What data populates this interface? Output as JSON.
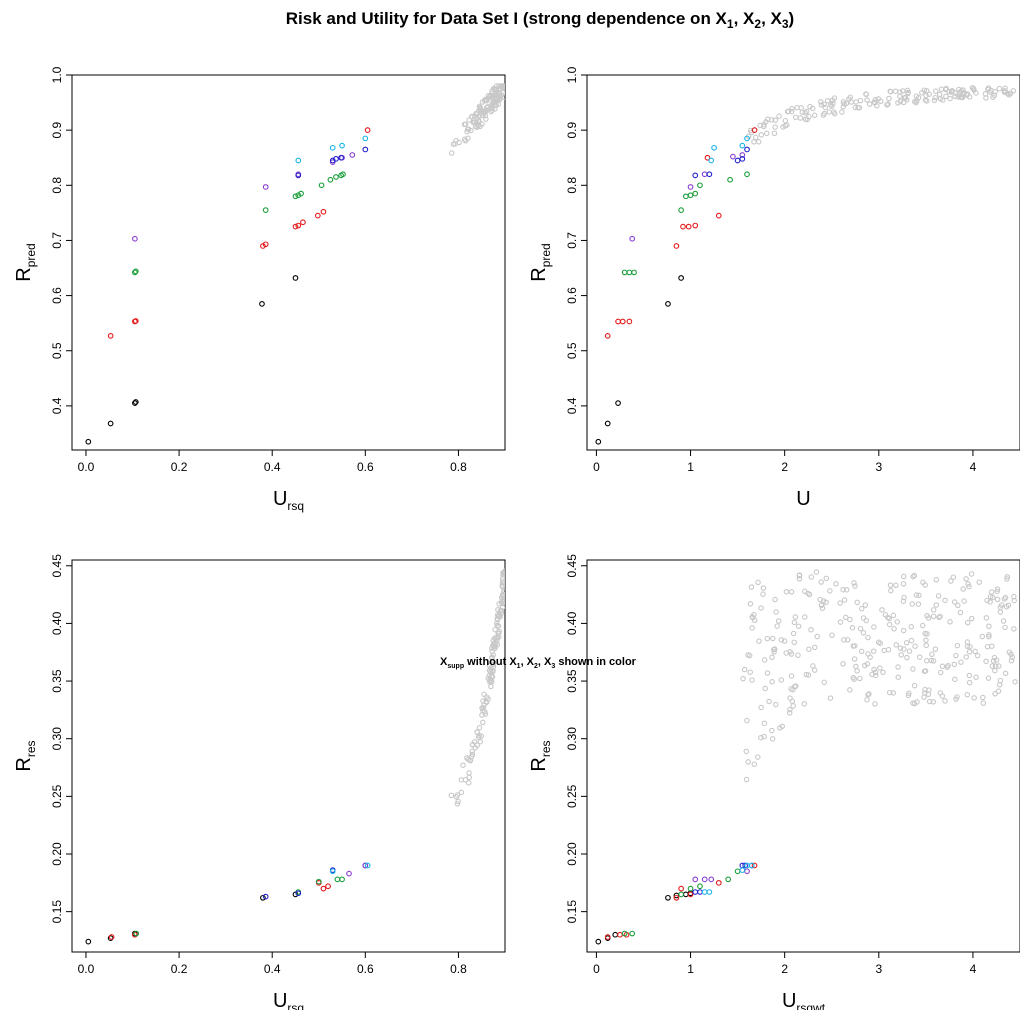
{
  "figure": {
    "title": "Risk and Utility for Data Set I (strong dependence on X1, X2, X3)",
    "title_parts": {
      "main": "Risk and Utility for Data Set I (strong dependence on X",
      "s1": "1",
      "c1": ", X",
      "s2": "2",
      "c2": ", X",
      "s3": "3",
      "end": ")"
    },
    "footnote": "Xsupp without X1, X2, X3 shown in color",
    "footnote_parts": {
      "x": "X",
      "supp": "supp",
      "mid": " without X",
      "s1": "1",
      "c1": ", X",
      "s2": "2",
      "c2": ", X",
      "s3": "3",
      "end": " shown in color"
    }
  },
  "colors": {
    "gray": "#c8c8c8",
    "black": "#000000",
    "red": "#e41a1c",
    "green": "#1a9e3a",
    "blue": "#2222cc",
    "purple": "#8a3fd0",
    "cyan": "#1ab4e8"
  },
  "chart_data": [
    {
      "type": "scatter",
      "xlabel": "U",
      "xlabel_sub": "rsq",
      "ylabel": "R",
      "ylabel_sub": "pred",
      "xlim": [
        -0.03,
        0.9
      ],
      "ylim": [
        0.32,
        1.0
      ],
      "x_ticks": [
        "0.0",
        "0.2",
        "0.4",
        "0.6",
        "0.8"
      ],
      "y_ticks": [
        "0.4",
        "0.5",
        "0.6",
        "0.7",
        "0.8",
        "0.9",
        "1.0"
      ],
      "grid": false,
      "legend": "none",
      "series": [
        {
          "color": "black",
          "points": [
            [
              0.005,
              0.335
            ],
            [
              0.053,
              0.368
            ],
            [
              0.105,
              0.405
            ],
            [
              0.107,
              0.407
            ],
            [
              0.378,
              0.585
            ],
            [
              0.45,
              0.632
            ]
          ]
        },
        {
          "color": "red",
          "points": [
            [
              0.053,
              0.527
            ],
            [
              0.105,
              0.553
            ],
            [
              0.107,
              0.554
            ],
            [
              0.38,
              0.69
            ],
            [
              0.386,
              0.693
            ],
            [
              0.45,
              0.725
            ],
            [
              0.456,
              0.727
            ],
            [
              0.466,
              0.733
            ],
            [
              0.498,
              0.745
            ],
            [
              0.51,
              0.752
            ],
            [
              0.605,
              0.9
            ]
          ]
        },
        {
          "color": "green",
          "points": [
            [
              0.105,
              0.642
            ],
            [
              0.107,
              0.644
            ],
            [
              0.386,
              0.755
            ],
            [
              0.45,
              0.78
            ],
            [
              0.456,
              0.782
            ],
            [
              0.462,
              0.785
            ],
            [
              0.506,
              0.8
            ],
            [
              0.525,
              0.81
            ],
            [
              0.537,
              0.815
            ],
            [
              0.548,
              0.818
            ],
            [
              0.552,
              0.82
            ]
          ]
        },
        {
          "color": "purple",
          "points": [
            [
              0.105,
              0.703
            ],
            [
              0.386,
              0.797
            ],
            [
              0.456,
              0.82
            ],
            [
              0.53,
              0.842
            ],
            [
              0.55,
              0.85
            ],
            [
              0.572,
              0.855
            ]
          ]
        },
        {
          "color": "blue",
          "points": [
            [
              0.456,
              0.818
            ],
            [
              0.53,
              0.845
            ],
            [
              0.537,
              0.848
            ],
            [
              0.548,
              0.85
            ],
            [
              0.6,
              0.865
            ]
          ]
        },
        {
          "color": "cyan",
          "points": [
            [
              0.456,
              0.845
            ],
            [
              0.53,
              0.868
            ],
            [
              0.55,
              0.872
            ],
            [
              0.6,
              0.885
            ]
          ]
        }
      ],
      "gray_cloud": {
        "n": 120,
        "x_range": [
          0.77,
          0.9
        ],
        "y_range": [
          0.85,
          0.98
        ],
        "shape": "rising"
      }
    },
    {
      "type": "scatter",
      "xlabel": "U",
      "xlabel_sub": "",
      "ylabel": "R",
      "ylabel_sub": "pred",
      "xlim": [
        -0.1,
        4.5
      ],
      "ylim": [
        0.32,
        1.0
      ],
      "x_ticks": [
        "0",
        "1",
        "2",
        "3",
        "4"
      ],
      "y_ticks": [
        "0.4",
        "0.5",
        "0.6",
        "0.7",
        "0.8",
        "0.9",
        "1.0"
      ],
      "grid": false,
      "legend": "none",
      "series": [
        {
          "color": "black",
          "points": [
            [
              0.02,
              0.335
            ],
            [
              0.12,
              0.368
            ],
            [
              0.23,
              0.405
            ],
            [
              0.76,
              0.585
            ],
            [
              0.9,
              0.632
            ]
          ]
        },
        {
          "color": "red",
          "points": [
            [
              0.12,
              0.527
            ],
            [
              0.23,
              0.553
            ],
            [
              0.28,
              0.553
            ],
            [
              0.35,
              0.553
            ],
            [
              0.85,
              0.69
            ],
            [
              0.92,
              0.725
            ],
            [
              0.98,
              0.725
            ],
            [
              1.05,
              0.727
            ],
            [
              1.3,
              0.745
            ],
            [
              1.68,
              0.9
            ],
            [
              1.18,
              0.85
            ]
          ]
        },
        {
          "color": "green",
          "points": [
            [
              0.3,
              0.642
            ],
            [
              0.35,
              0.642
            ],
            [
              0.4,
              0.642
            ],
            [
              0.9,
              0.755
            ],
            [
              0.95,
              0.78
            ],
            [
              1.0,
              0.782
            ],
            [
              1.05,
              0.785
            ],
            [
              1.1,
              0.8
            ],
            [
              1.42,
              0.81
            ],
            [
              1.6,
              0.82
            ]
          ]
        },
        {
          "color": "purple",
          "points": [
            [
              0.38,
              0.703
            ],
            [
              1.0,
              0.797
            ],
            [
              1.15,
              0.82
            ],
            [
              1.45,
              0.852
            ],
            [
              1.55,
              0.855
            ]
          ]
        },
        {
          "color": "blue",
          "points": [
            [
              1.05,
              0.818
            ],
            [
              1.2,
              0.82
            ],
            [
              1.5,
              0.845
            ],
            [
              1.55,
              0.848
            ],
            [
              1.6,
              0.865
            ]
          ]
        },
        {
          "color": "cyan",
          "points": [
            [
              1.22,
              0.845
            ],
            [
              1.25,
              0.868
            ],
            [
              1.55,
              0.872
            ],
            [
              1.6,
              0.885
            ]
          ]
        }
      ],
      "gray_cloud": {
        "n": 160,
        "x_range": [
          1.6,
          4.45
        ],
        "y_range": [
          0.9,
          0.98
        ],
        "shape": "saturating"
      }
    },
    {
      "type": "scatter",
      "xlabel": "U",
      "xlabel_sub": "rsq",
      "ylabel": "R",
      "ylabel_sub": "res",
      "xlim": [
        -0.03,
        0.9
      ],
      "ylim": [
        0.115,
        0.455
      ],
      "x_ticks": [
        "0.0",
        "0.2",
        "0.4",
        "0.6",
        "0.8"
      ],
      "y_ticks": [
        "0.15",
        "0.20",
        "0.25",
        "0.30",
        "0.35",
        "0.40",
        "0.45"
      ],
      "grid": false,
      "legend": "none",
      "series": [
        {
          "color": "black",
          "points": [
            [
              0.005,
              0.124
            ],
            [
              0.053,
              0.127
            ],
            [
              0.105,
              0.131
            ],
            [
              0.38,
              0.162
            ],
            [
              0.45,
              0.165
            ]
          ]
        },
        {
          "color": "red",
          "points": [
            [
              0.055,
              0.128
            ],
            [
              0.105,
              0.13
            ],
            [
              0.5,
              0.175
            ],
            [
              0.51,
              0.17
            ],
            [
              0.52,
              0.172
            ]
          ]
        },
        {
          "color": "green",
          "points": [
            [
              0.108,
              0.131
            ],
            [
              0.456,
              0.167
            ],
            [
              0.5,
              0.176
            ],
            [
              0.54,
              0.178
            ],
            [
              0.55,
              0.178
            ]
          ]
        },
        {
          "color": "blue",
          "points": [
            [
              0.386,
              0.163
            ],
            [
              0.456,
              0.166
            ],
            [
              0.53,
              0.186
            ],
            [
              0.6,
              0.19
            ]
          ]
        },
        {
          "color": "purple",
          "points": [
            [
              0.565,
              0.183
            ],
            [
              0.6,
              0.19
            ]
          ]
        },
        {
          "color": "cyan",
          "points": [
            [
              0.53,
              0.185
            ],
            [
              0.605,
              0.19
            ]
          ]
        }
      ],
      "gray_cloud": {
        "n": 130,
        "x_range": [
          0.77,
          0.9
        ],
        "y_range": [
          0.25,
          0.445
        ],
        "shape": "steep"
      }
    },
    {
      "type": "scatter",
      "xlabel": "U",
      "xlabel_sub": "rsqwt",
      "ylabel": "R",
      "ylabel_sub": "res",
      "xlim": [
        -0.1,
        4.5
      ],
      "ylim": [
        0.115,
        0.455
      ],
      "x_ticks": [
        "0",
        "1",
        "2",
        "3",
        "4"
      ],
      "y_ticks": [
        "0.15",
        "0.20",
        "0.25",
        "0.30",
        "0.35",
        "0.40",
        "0.45"
      ],
      "grid": false,
      "legend": "none",
      "series": [
        {
          "color": "black",
          "points": [
            [
              0.02,
              0.124
            ],
            [
              0.12,
              0.127
            ],
            [
              0.2,
              0.13
            ],
            [
              0.76,
              0.162
            ],
            [
              0.85,
              0.164
            ],
            [
              0.95,
              0.165
            ],
            [
              1.0,
              0.166
            ]
          ]
        },
        {
          "color": "red",
          "points": [
            [
              0.12,
              0.128
            ],
            [
              0.25,
              0.13
            ],
            [
              0.32,
              0.13
            ],
            [
              0.85,
              0.162
            ],
            [
              0.9,
              0.17
            ],
            [
              1.0,
              0.165
            ],
            [
              1.3,
              0.175
            ],
            [
              1.68,
              0.19
            ]
          ]
        },
        {
          "color": "green",
          "points": [
            [
              0.3,
              0.131
            ],
            [
              0.38,
              0.131
            ],
            [
              0.9,
              0.165
            ],
            [
              1.0,
              0.17
            ],
            [
              1.1,
              0.172
            ],
            [
              1.4,
              0.178
            ],
            [
              1.5,
              0.185
            ]
          ]
        },
        {
          "color": "purple",
          "points": [
            [
              1.05,
              0.178
            ],
            [
              1.15,
              0.178
            ],
            [
              1.22,
              0.178
            ],
            [
              1.6,
              0.185
            ],
            [
              1.65,
              0.19
            ]
          ]
        },
        {
          "color": "blue",
          "points": [
            [
              1.05,
              0.167
            ],
            [
              1.1,
              0.167
            ],
            [
              1.55,
              0.19
            ],
            [
              1.58,
              0.19
            ]
          ]
        },
        {
          "color": "cyan",
          "points": [
            [
              1.15,
              0.167
            ],
            [
              1.2,
              0.167
            ],
            [
              1.55,
              0.186
            ],
            [
              1.6,
              0.19
            ],
            [
              1.65,
              0.19
            ]
          ]
        }
      ],
      "gray_cloud": {
        "n": 320,
        "x_range": [
          1.55,
          4.45
        ],
        "y_range": [
          0.25,
          0.445
        ],
        "shape": "band"
      }
    }
  ]
}
